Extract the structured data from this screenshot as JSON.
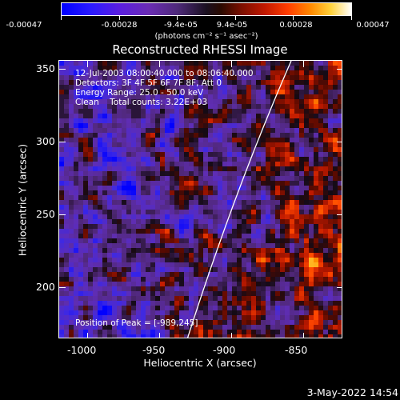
{
  "colorbar": {
    "tick_labels": [
      "-0.00047",
      "-0.00028",
      "-9.4e-05",
      "9.4e-05",
      "0.00028",
      "0.00047"
    ],
    "units": "(photons cm⁻² s⁻¹ asec⁻²)"
  },
  "title": "Reconstructed RHESSI Image",
  "info": {
    "time": "12-Jul-2003 08:00:40.000 to 08:06:40.000",
    "detectors": "Detectors: 3F 4F 5F 6F 7F 8F, Att 0",
    "energy": "Energy Range: 25.0 - 50.0 keV",
    "clean": "Clean    Total counts: 3.22E+03",
    "peak": "Position of Peak = [-989,245]"
  },
  "axes": {
    "xlabel": "Heliocentric X (arcsec)",
    "ylabel": "Heliocentric Y (arcsec)",
    "xticks": [
      "-1000",
      "-950",
      "-900",
      "-850"
    ],
    "yticks": [
      "350",
      "300",
      "250",
      "200"
    ]
  },
  "timestamp": "3-May-2022 14:54"
}
